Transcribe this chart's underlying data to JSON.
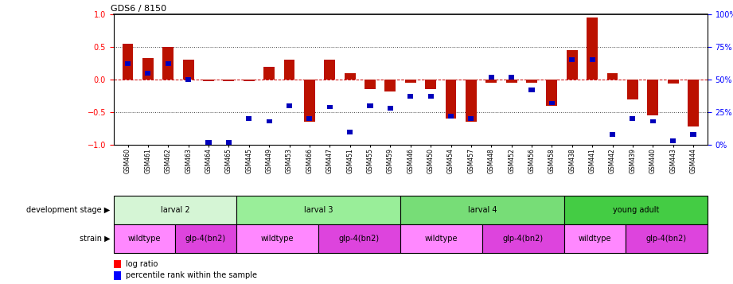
{
  "title": "GDS6 / 8150",
  "samples": [
    "GSM460",
    "GSM461",
    "GSM462",
    "GSM463",
    "GSM464",
    "GSM465",
    "GSM445",
    "GSM449",
    "GSM453",
    "GSM466",
    "GSM447",
    "GSM451",
    "GSM455",
    "GSM459",
    "GSM446",
    "GSM450",
    "GSM454",
    "GSM457",
    "GSM448",
    "GSM452",
    "GSM456",
    "GSM458",
    "GSM438",
    "GSM441",
    "GSM442",
    "GSM439",
    "GSM440",
    "GSM443",
    "GSM444"
  ],
  "log_ratio": [
    0.55,
    0.33,
    0.5,
    0.3,
    -0.02,
    -0.02,
    -0.02,
    0.2,
    0.3,
    -0.65,
    0.3,
    0.1,
    -0.15,
    -0.18,
    -0.05,
    -0.15,
    -0.6,
    -0.65,
    -0.05,
    -0.05,
    -0.05,
    -0.4,
    0.45,
    0.95,
    0.1,
    -0.3,
    -0.55,
    -0.06,
    -0.72
  ],
  "percentile": [
    62,
    55,
    62,
    50,
    2,
    2,
    20,
    18,
    30,
    20,
    29,
    10,
    30,
    28,
    37,
    37,
    22,
    20,
    52,
    52,
    42,
    32,
    65,
    65,
    8,
    20,
    18,
    3,
    8
  ],
  "development_stages": [
    {
      "label": "larval 2",
      "start": 0,
      "end": 6,
      "color": "#d5f5d5"
    },
    {
      "label": "larval 3",
      "start": 6,
      "end": 14,
      "color": "#99ee99"
    },
    {
      "label": "larval 4",
      "start": 14,
      "end": 22,
      "color": "#77dd77"
    },
    {
      "label": "young adult",
      "start": 22,
      "end": 29,
      "color": "#44cc44"
    }
  ],
  "strains": [
    {
      "label": "wildtype",
      "start": 0,
      "end": 3,
      "color": "#ff88ff"
    },
    {
      "label": "glp-4(bn2)",
      "start": 3,
      "end": 6,
      "color": "#dd44dd"
    },
    {
      "label": "wildtype",
      "start": 6,
      "end": 10,
      "color": "#ff88ff"
    },
    {
      "label": "glp-4(bn2)",
      "start": 10,
      "end": 14,
      "color": "#dd44dd"
    },
    {
      "label": "wildtype",
      "start": 14,
      "end": 18,
      "color": "#ff88ff"
    },
    {
      "label": "glp-4(bn2)",
      "start": 18,
      "end": 22,
      "color": "#dd44dd"
    },
    {
      "label": "wildtype",
      "start": 22,
      "end": 25,
      "color": "#ff88ff"
    },
    {
      "label": "glp-4(bn2)",
      "start": 25,
      "end": 29,
      "color": "#dd44dd"
    }
  ],
  "bar_color": "#bb1100",
  "percentile_color": "#0000bb",
  "ylim": [
    -1,
    1
  ],
  "y2lim": [
    0,
    100
  ],
  "y_ticks": [
    -1,
    -0.5,
    0,
    0.5,
    1
  ],
  "y2_ticks": [
    0,
    25,
    50,
    75,
    100
  ],
  "hline_color": "#cc0000",
  "dotted_line_color": "#444444"
}
